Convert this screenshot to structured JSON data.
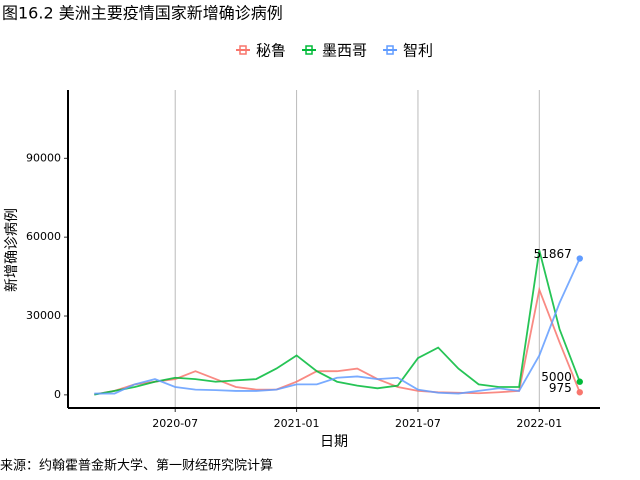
{
  "chart_data": {
    "type": "line",
    "title": "图16.2 美洲主要疫情国家新增确诊病例",
    "x_label": "日期",
    "y_label": "新增确诊病例",
    "source": "来源：约翰霍普金斯大学、第一财经研究院计算",
    "x": [
      "2020-03",
      "2020-04",
      "2020-05",
      "2020-06",
      "2020-07",
      "2020-08",
      "2020-09",
      "2020-10",
      "2020-11",
      "2020-12",
      "2021-01",
      "2021-02",
      "2021-03",
      "2021-04",
      "2021-05",
      "2021-06",
      "2021-07",
      "2021-08",
      "2021-09",
      "2021-10",
      "2021-11",
      "2021-12",
      "2022-01",
      "2022-02",
      "2022-03"
    ],
    "xticks": [
      "2020-07",
      "2021-01",
      "2021-07",
      "2022-01"
    ],
    "ylim": [
      -5000,
      116000
    ],
    "yticks": [
      0,
      30000,
      60000,
      90000
    ],
    "grid": "x",
    "legend": "top",
    "series": [
      {
        "name": "秘鲁",
        "color": "#F8766D",
        "values": [
          200,
          1500,
          4000,
          5000,
          6000,
          9000,
          6000,
          3000,
          2000,
          2000,
          5000,
          9000,
          9000,
          10000,
          6000,
          3000,
          1500,
          1000,
          800,
          600,
          1000,
          1500,
          40000,
          20000,
          975
        ]
      },
      {
        "name": "墨西哥",
        "color": "#00BA38",
        "values": [
          100,
          1500,
          3000,
          5000,
          6500,
          6000,
          5000,
          5500,
          6000,
          10000,
          15000,
          9000,
          5000,
          3500,
          2500,
          3500,
          14000,
          18000,
          10000,
          4000,
          3000,
          3000,
          55000,
          25000,
          5000
        ]
      },
      {
        "name": "智利",
        "color": "#619CFF",
        "values": [
          500,
          500,
          4000,
          6000,
          3000,
          2000,
          1800,
          1500,
          1500,
          2000,
          4000,
          4000,
          6500,
          7000,
          6000,
          6500,
          2000,
          800,
          500,
          1500,
          2500,
          1500,
          15000,
          35000,
          51867
        ]
      }
    ]
  }
}
